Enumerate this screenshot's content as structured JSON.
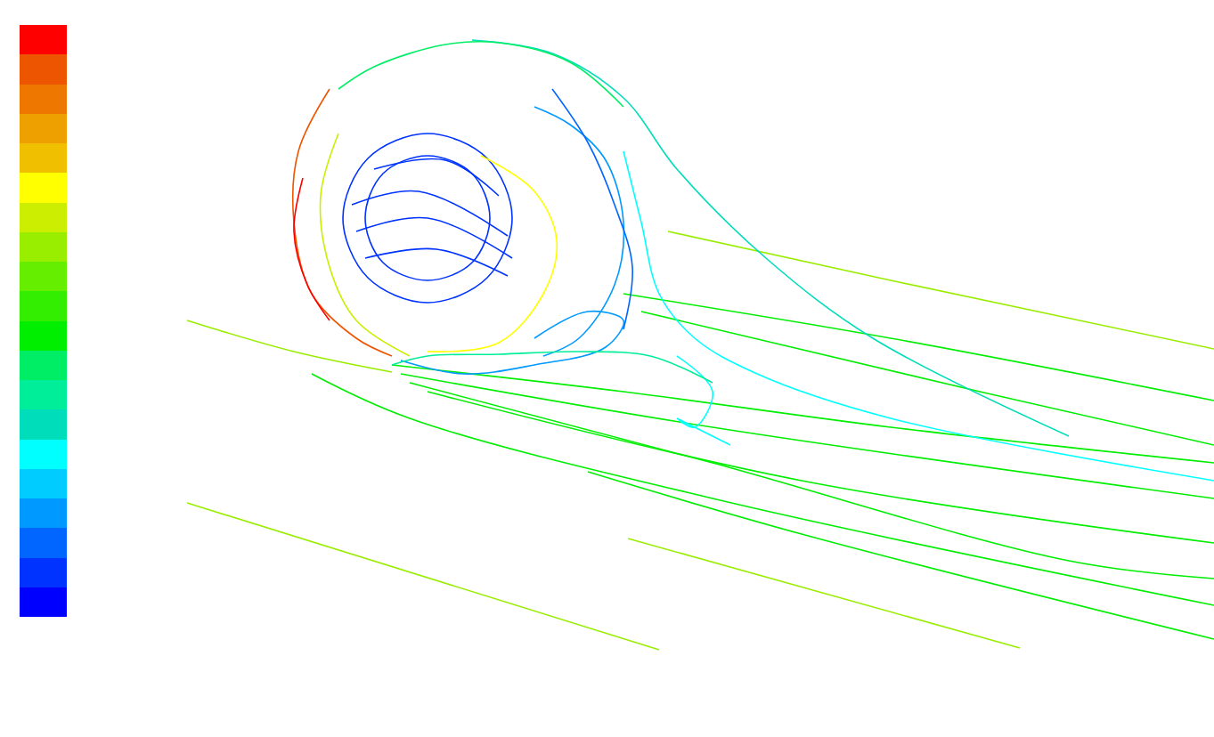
{
  "chart_data": {
    "type": "streamlines",
    "tick_labels": false,
    "xlim": [
      0,
      1363
    ],
    "ylim": [
      828,
      0
    ],
    "colorbar": {
      "range": [
        0,
        1
      ],
      "colors": [
        "#0000ff",
        "#0033ff",
        "#0066ff",
        "#0099ff",
        "#00ccff",
        "#00ffff",
        "#00ddbb",
        "#00ee99",
        "#00ee66",
        "#00ee00",
        "#33ee00",
        "#66ee00",
        "#99ee00",
        "#ccee00",
        "#ffff00",
        "#f0c000",
        "#eea000",
        "#ee7700",
        "#ee5500",
        "#ff0000"
      ]
    },
    "streamlines": [
      {
        "value": 0.62,
        "x": [
          210,
          330,
          440
        ],
        "y": [
          360,
          395,
          418
        ]
      },
      {
        "value": 0.62,
        "x": [
          210,
          740
        ],
        "y": [
          565,
          730
        ]
      },
      {
        "value": 0.62,
        "x": [
          705,
          1145
        ],
        "y": [
          605,
          728
        ]
      },
      {
        "value": 0.62,
        "x": [
          750,
          1000,
          1363
        ],
        "y": [
          260,
          315,
          392
        ]
      },
      {
        "value": 0.48,
        "x": [
          440,
          700,
          1000,
          1363
        ],
        "y": [
          410,
          440,
          480,
          520
        ]
      },
      {
        "value": 0.48,
        "x": [
          450,
          800,
          1363
        ],
        "y": [
          420,
          480,
          560
        ]
      },
      {
        "value": 0.48,
        "x": [
          350,
          460,
          800,
          1363
        ],
        "y": [
          420,
          470,
          560,
          680
        ]
      },
      {
        "value": 0.48,
        "x": [
          660,
          900,
          1363
        ],
        "y": [
          530,
          600,
          718
        ]
      },
      {
        "value": 0.48,
        "x": [
          700,
          1000,
          1363
        ],
        "y": [
          330,
          380,
          450
        ]
      },
      {
        "value": 0.48,
        "x": [
          720,
          1100,
          1363
        ],
        "y": [
          350,
          440,
          500
        ]
      },
      {
        "value": 0.48,
        "x": [
          460,
          800,
          1200,
          1363
        ],
        "y": [
          430,
          520,
          630,
          650
        ]
      },
      {
        "value": 0.48,
        "x": [
          480,
          900,
          1363
        ],
        "y": [
          440,
          540,
          610
        ]
      },
      {
        "value": 0.3,
        "x": [
          530,
          620,
          700,
          760,
          860,
          980,
          1200
        ],
        "y": [
          45,
          60,
          110,
          190,
          290,
          380,
          490
        ]
      },
      {
        "value": 0.28,
        "x": [
          700,
          720,
          740,
          780,
          850,
          1000,
          1363
        ],
        "y": [
          170,
          250,
          330,
          380,
          420,
          470,
          540
        ]
      },
      {
        "value": 0.26,
        "x": [
          760,
          800,
          780,
          760,
          820
        ],
        "y": [
          400,
          440,
          480,
          470,
          500
        ]
      },
      {
        "value": 0.05,
        "x": [
          480,
          547,
          575,
          547,
          480,
          413,
          385,
          413,
          480
        ],
        "y": [
          150,
          178,
          245,
          312,
          340,
          312,
          245,
          178,
          150
        ]
      },
      {
        "value": 0.05,
        "x": [
          480,
          530,
          550,
          530,
          480,
          430,
          410,
          430,
          480
        ],
        "y": [
          175,
          195,
          245,
          295,
          315,
          295,
          245,
          195,
          175
        ]
      },
      {
        "value": 0.08,
        "x": [
          395,
          470,
          570
        ],
        "y": [
          230,
          215,
          265
        ]
      },
      {
        "value": 0.08,
        "x": [
          400,
          480,
          575
        ],
        "y": [
          260,
          245,
          290
        ]
      },
      {
        "value": 0.08,
        "x": [
          410,
          490,
          570
        ],
        "y": [
          290,
          280,
          310
        ]
      },
      {
        "value": 0.08,
        "x": [
          420,
          500,
          560
        ],
        "y": [
          190,
          180,
          220
        ]
      },
      {
        "value": 0.72,
        "x": [
          540,
          600,
          625,
          610,
          560,
          480
        ],
        "y": [
          175,
          215,
          270,
          330,
          385,
          395
        ]
      },
      {
        "value": 0.66,
        "x": [
          380,
          360,
          370,
          400,
          460
        ],
        "y": [
          150,
          220,
          300,
          360,
          400
        ]
      },
      {
        "value": 0.9,
        "x": [
          370,
          335,
          330,
          350,
          400,
          440
        ],
        "y": [
          100,
          170,
          250,
          330,
          380,
          400
        ]
      },
      {
        "value": 0.97,
        "x": [
          340,
          330,
          345,
          370
        ],
        "y": [
          200,
          260,
          320,
          360
        ]
      },
      {
        "value": 0.42,
        "x": [
          380,
          420,
          500,
          560,
          640,
          700
        ],
        "y": [
          100,
          75,
          50,
          48,
          70,
          120
        ]
      },
      {
        "value": 0.15,
        "x": [
          600,
          640,
          680,
          700,
          690,
          650,
          610
        ],
        "y": [
          120,
          140,
          180,
          250,
          320,
          380,
          400
        ]
      },
      {
        "value": 0.12,
        "x": [
          620,
          660,
          690,
          710,
          700
        ],
        "y": [
          100,
          160,
          230,
          300,
          370
        ]
      },
      {
        "value": 0.18,
        "x": [
          450,
          520,
          600,
          680,
          700,
          660,
          600
        ],
        "y": [
          405,
          420,
          410,
          390,
          360,
          350,
          380
        ]
      },
      {
        "value": 0.35,
        "x": [
          440,
          480,
          560,
          650,
          730,
          800
        ],
        "y": [
          410,
          400,
          398,
          395,
          400,
          430
        ]
      }
    ]
  }
}
